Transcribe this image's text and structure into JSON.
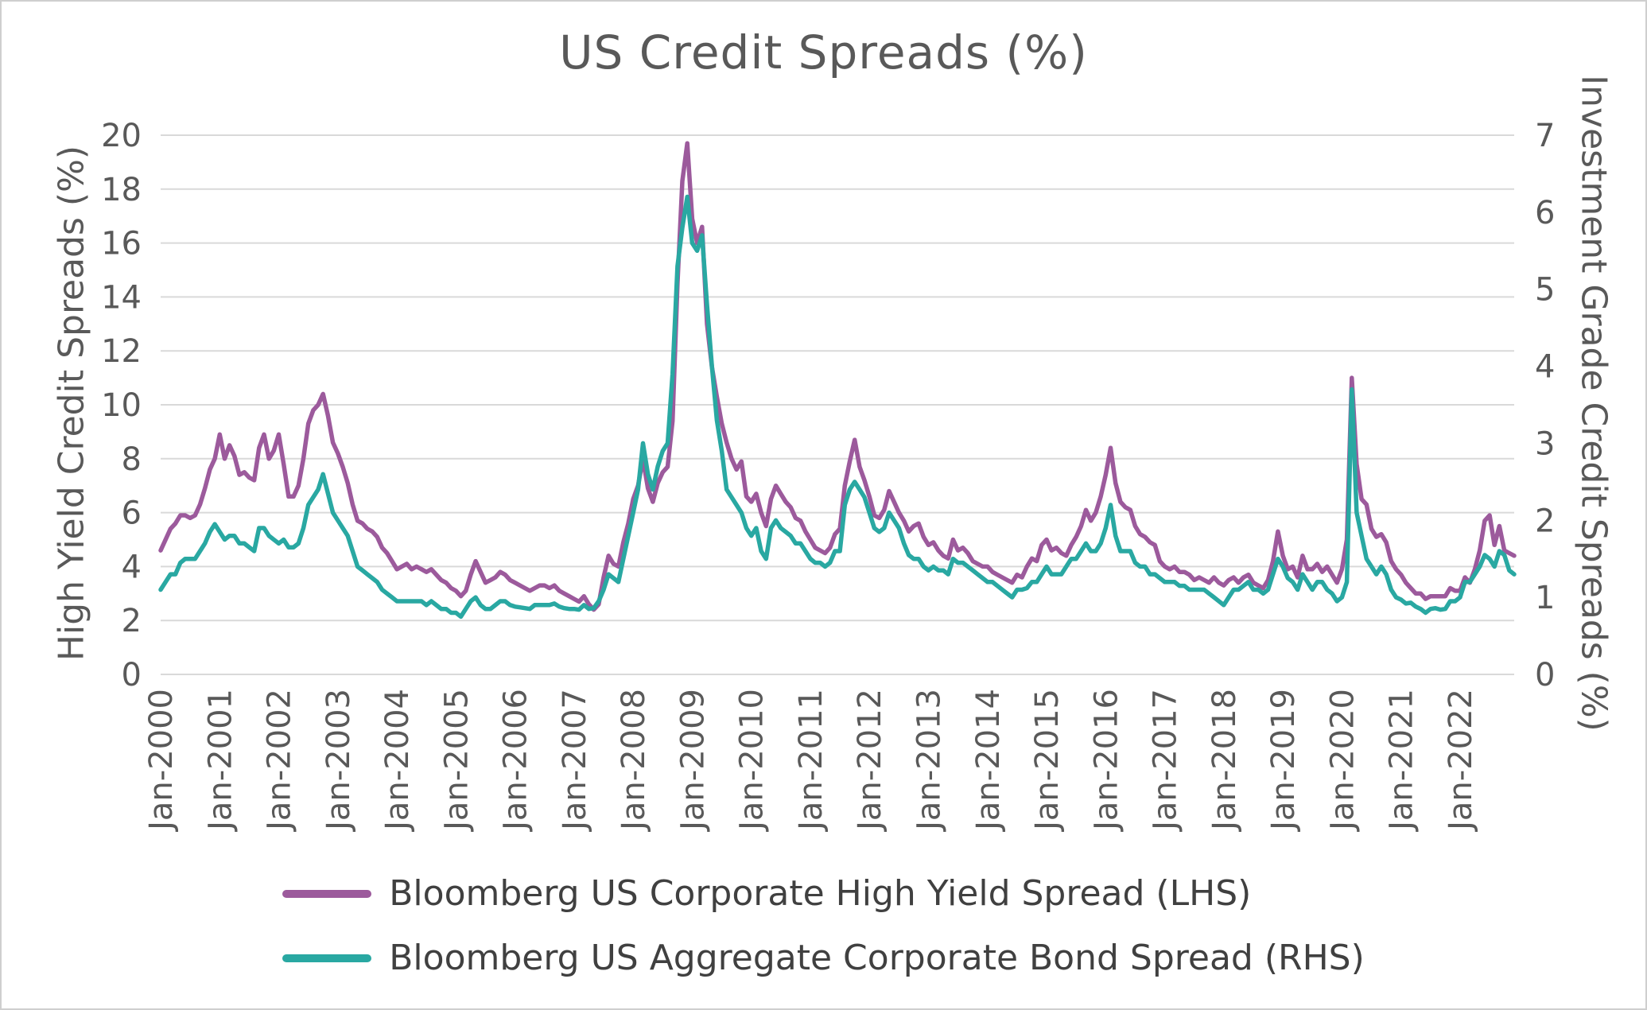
{
  "chart": {
    "title": "US Credit Spreads (%)",
    "left_axis": {
      "label": "High Yield Credit Spreads (%)",
      "min": 0,
      "max": 20,
      "tick_step": 2
    },
    "right_axis": {
      "label": "Investment Grade Credit Spreads (%)",
      "min": 0,
      "max": 7,
      "tick_step": 1
    },
    "grid_color": "#d9d9d9",
    "axis_text_color": "#595959",
    "legend": [
      {
        "label": "Bloomberg US Corporate High Yield Spread (LHS)",
        "color": "#9C5A9C"
      },
      {
        "label": "Bloomberg US Aggregate Corporate Bond Spread (RHS)",
        "color": "#29A8A2"
      }
    ]
  },
  "chart_data": {
    "type": "line",
    "title": "US Credit Spreads (%)",
    "x_unit": "month",
    "x_start": "Jan-2000",
    "x_end": "Dec-2022",
    "grid": true,
    "legend_position": "bottom",
    "left_ylim": [
      0,
      20
    ],
    "right_ylim": [
      0,
      7
    ],
    "x_tick_labels": [
      "Jan-2000",
      "Jan-2001",
      "Jan-2002",
      "Jan-2003",
      "Jan-2004",
      "Jan-2005",
      "Jan-2006",
      "Jan-2007",
      "Jan-2008",
      "Jan-2009",
      "Jan-2010",
      "Jan-2011",
      "Jan-2012",
      "Jan-2013",
      "Jan-2014",
      "Jan-2015",
      "Jan-2016",
      "Jan-2017",
      "Jan-2018",
      "Jan-2019",
      "Jan-2020",
      "Jan-2021",
      "Jan-2022"
    ],
    "series": [
      {
        "name": "Bloomberg US Corporate High Yield Spread (LHS)",
        "axis": "left",
        "color": "#9C5A9C",
        "values": [
          4.6,
          5.0,
          5.4,
          5.6,
          5.9,
          5.9,
          5.8,
          5.9,
          6.3,
          6.9,
          7.6,
          8.0,
          8.9,
          8.0,
          8.5,
          8.1,
          7.4,
          7.5,
          7.3,
          7.2,
          8.4,
          8.9,
          8.0,
          8.3,
          8.9,
          7.8,
          6.6,
          6.6,
          7.0,
          8.0,
          9.3,
          9.8,
          10.0,
          10.4,
          9.6,
          8.6,
          8.2,
          7.7,
          7.1,
          6.3,
          5.7,
          5.6,
          5.4,
          5.3,
          5.1,
          4.7,
          4.5,
          4.2,
          3.9,
          4.0,
          4.1,
          3.9,
          4.0,
          3.9,
          3.8,
          3.9,
          3.7,
          3.5,
          3.4,
          3.2,
          3.1,
          2.9,
          3.1,
          3.7,
          4.2,
          3.8,
          3.4,
          3.5,
          3.6,
          3.8,
          3.7,
          3.5,
          3.4,
          3.3,
          3.2,
          3.1,
          3.2,
          3.3,
          3.3,
          3.2,
          3.3,
          3.1,
          3.0,
          2.9,
          2.8,
          2.7,
          2.9,
          2.6,
          2.4,
          2.6,
          3.6,
          4.4,
          4.1,
          4.0,
          4.9,
          5.6,
          6.5,
          7.0,
          8.0,
          6.9,
          6.4,
          7.1,
          7.5,
          7.7,
          9.4,
          14.5,
          18.3,
          19.7,
          16.9,
          16.0,
          16.6,
          13.0,
          11.4,
          10.3,
          9.3,
          8.6,
          8.0,
          7.6,
          7.9,
          6.6,
          6.4,
          6.7,
          6.0,
          5.5,
          6.5,
          7.0,
          6.7,
          6.4,
          6.2,
          5.8,
          5.7,
          5.3,
          5.0,
          4.7,
          4.6,
          4.5,
          4.7,
          5.2,
          5.4,
          7.0,
          7.9,
          8.7,
          7.7,
          7.2,
          6.6,
          5.9,
          5.8,
          6.1,
          6.8,
          6.4,
          6.0,
          5.7,
          5.3,
          5.5,
          5.6,
          5.1,
          4.8,
          4.9,
          4.6,
          4.4,
          4.3,
          5.0,
          4.6,
          4.7,
          4.5,
          4.2,
          4.1,
          4.0,
          4.0,
          3.8,
          3.7,
          3.6,
          3.5,
          3.4,
          3.7,
          3.6,
          4.0,
          4.3,
          4.2,
          4.8,
          5.0,
          4.6,
          4.7,
          4.5,
          4.4,
          4.8,
          5.1,
          5.5,
          6.1,
          5.7,
          6.0,
          6.6,
          7.4,
          8.4,
          7.1,
          6.4,
          6.2,
          6.1,
          5.5,
          5.2,
          5.1,
          4.9,
          4.8,
          4.2,
          4.0,
          3.9,
          4.0,
          3.8,
          3.8,
          3.7,
          3.5,
          3.6,
          3.5,
          3.4,
          3.6,
          3.4,
          3.3,
          3.5,
          3.6,
          3.4,
          3.6,
          3.7,
          3.4,
          3.3,
          3.2,
          3.5,
          4.2,
          5.3,
          4.4,
          3.9,
          4.0,
          3.6,
          4.4,
          3.9,
          3.9,
          4.1,
          3.8,
          4.0,
          3.7,
          3.4,
          3.9,
          5.0,
          11.0,
          7.8,
          6.5,
          6.3,
          5.4,
          5.1,
          5.2,
          4.9,
          4.2,
          3.9,
          3.7,
          3.4,
          3.2,
          3.0,
          3.0,
          2.8,
          2.9,
          2.9,
          2.9,
          2.9,
          3.2,
          3.1,
          3.1,
          3.6,
          3.4,
          3.9,
          4.6,
          5.7,
          5.9,
          4.8,
          5.5,
          4.6,
          4.5,
          4.4
        ]
      },
      {
        "name": "Bloomberg US Aggregate Corporate Bond Spread (RHS)",
        "axis": "right",
        "color": "#29A8A2",
        "values": [
          1.1,
          1.2,
          1.3,
          1.3,
          1.45,
          1.5,
          1.5,
          1.5,
          1.6,
          1.7,
          1.85,
          1.95,
          1.85,
          1.75,
          1.8,
          1.8,
          1.7,
          1.7,
          1.65,
          1.6,
          1.9,
          1.9,
          1.8,
          1.75,
          1.7,
          1.75,
          1.65,
          1.65,
          1.7,
          1.9,
          2.2,
          2.3,
          2.4,
          2.6,
          2.35,
          2.1,
          2.0,
          1.9,
          1.8,
          1.6,
          1.4,
          1.35,
          1.3,
          1.25,
          1.2,
          1.1,
          1.05,
          1.0,
          0.95,
          0.95,
          0.95,
          0.95,
          0.95,
          0.95,
          0.9,
          0.95,
          0.9,
          0.85,
          0.85,
          0.8,
          0.8,
          0.75,
          0.85,
          0.95,
          1.0,
          0.9,
          0.85,
          0.85,
          0.9,
          0.95,
          0.95,
          0.9,
          0.88,
          0.87,
          0.86,
          0.85,
          0.9,
          0.9,
          0.9,
          0.9,
          0.92,
          0.88,
          0.86,
          0.85,
          0.85,
          0.84,
          0.9,
          0.85,
          0.86,
          0.95,
          1.1,
          1.3,
          1.25,
          1.2,
          1.5,
          1.8,
          2.1,
          2.4,
          3.0,
          2.6,
          2.4,
          2.7,
          2.9,
          3.0,
          3.9,
          5.3,
          5.8,
          6.2,
          5.6,
          5.5,
          5.7,
          4.8,
          4.0,
          3.3,
          2.9,
          2.4,
          2.3,
          2.2,
          2.1,
          1.9,
          1.8,
          1.9,
          1.6,
          1.5,
          1.9,
          2.0,
          1.9,
          1.85,
          1.8,
          1.7,
          1.7,
          1.6,
          1.5,
          1.45,
          1.45,
          1.4,
          1.45,
          1.6,
          1.6,
          2.2,
          2.4,
          2.5,
          2.4,
          2.3,
          2.1,
          1.9,
          1.85,
          1.9,
          2.1,
          2.0,
          1.9,
          1.7,
          1.55,
          1.5,
          1.5,
          1.4,
          1.35,
          1.4,
          1.35,
          1.35,
          1.3,
          1.5,
          1.45,
          1.45,
          1.4,
          1.35,
          1.3,
          1.25,
          1.2,
          1.2,
          1.15,
          1.1,
          1.05,
          1.0,
          1.1,
          1.1,
          1.12,
          1.2,
          1.2,
          1.3,
          1.4,
          1.3,
          1.3,
          1.3,
          1.4,
          1.5,
          1.5,
          1.6,
          1.7,
          1.6,
          1.6,
          1.7,
          1.9,
          2.2,
          1.8,
          1.6,
          1.6,
          1.6,
          1.45,
          1.4,
          1.4,
          1.3,
          1.3,
          1.25,
          1.2,
          1.2,
          1.2,
          1.15,
          1.15,
          1.1,
          1.1,
          1.1,
          1.1,
          1.05,
          1.0,
          0.95,
          0.9,
          1.0,
          1.1,
          1.1,
          1.15,
          1.2,
          1.1,
          1.1,
          1.05,
          1.1,
          1.3,
          1.5,
          1.4,
          1.25,
          1.2,
          1.1,
          1.3,
          1.2,
          1.1,
          1.2,
          1.2,
          1.1,
          1.05,
          0.95,
          1.0,
          1.2,
          3.7,
          2.1,
          1.8,
          1.5,
          1.4,
          1.3,
          1.4,
          1.3,
          1.1,
          1.0,
          0.97,
          0.92,
          0.93,
          0.88,
          0.85,
          0.8,
          0.85,
          0.86,
          0.84,
          0.85,
          0.95,
          0.95,
          1.0,
          1.2,
          1.2,
          1.3,
          1.4,
          1.55,
          1.5,
          1.4,
          1.6,
          1.55,
          1.35,
          1.3
        ]
      }
    ]
  }
}
